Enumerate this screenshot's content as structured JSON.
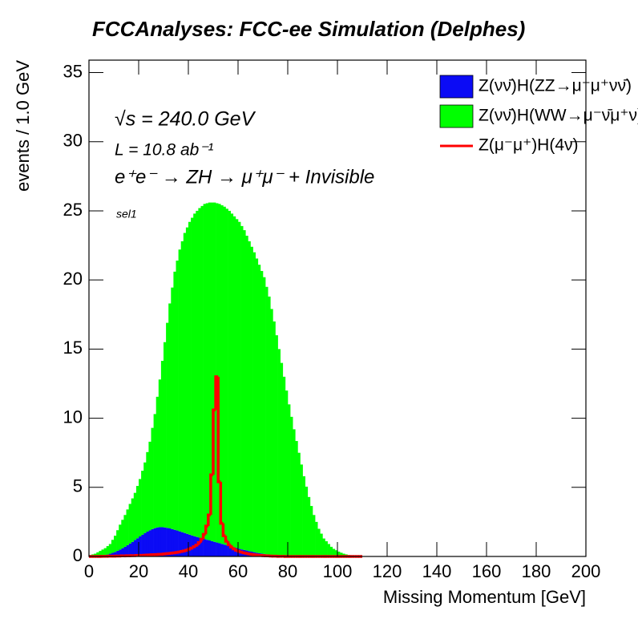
{
  "chart_data": {
    "type": "histogram",
    "title": "FCCAnalyses: FCC-ee Simulation (Delphes)",
    "x_label": "Missing Momentum [GeV]",
    "y_label": "events / 1.0 GeV",
    "annotations": [
      "√s = 240.0 GeV",
      "L = 10.8 ab⁻¹",
      "e⁺e⁻ → ZH → μ⁺μ⁻ + Invisible",
      "sel1"
    ],
    "legend": "top-right",
    "xlim": [
      0,
      200
    ],
    "ylim": [
      0,
      35.9
    ],
    "xticks": [
      0,
      20,
      40,
      60,
      80,
      100,
      120,
      140,
      160,
      180,
      200
    ],
    "yticks": [
      0,
      5,
      10,
      15,
      20,
      25,
      30,
      35
    ],
    "bins": [
      0,
      1,
      2,
      3,
      4,
      5,
      6,
      7,
      8,
      9,
      10,
      11,
      12,
      13,
      14,
      15,
      16,
      17,
      18,
      19,
      20,
      21,
      22,
      23,
      24,
      25,
      26,
      27,
      28,
      29,
      30,
      31,
      32,
      33,
      34,
      35,
      36,
      37,
      38,
      39,
      40,
      41,
      42,
      43,
      44,
      45,
      46,
      47,
      48,
      49,
      50,
      51,
      52,
      53,
      54,
      55,
      56,
      57,
      58,
      59,
      60,
      61,
      62,
      63,
      64,
      65,
      66,
      67,
      68,
      69,
      70,
      71,
      72,
      73,
      74,
      75,
      76,
      77,
      78,
      79,
      80,
      81,
      82,
      83,
      84,
      85,
      86,
      87,
      88,
      89,
      90,
      91,
      92,
      93,
      94,
      95,
      96,
      97,
      98,
      99,
      100,
      101,
      102,
      103,
      104,
      105,
      106,
      107,
      108,
      109,
      110
    ],
    "series": [
      {
        "name": "Z(νν̄)H(ZZ→μ⁻μ⁺νν̄)",
        "color": "#0b0bf5",
        "style": "stacked",
        "values": [
          0,
          0,
          0.01,
          0.02,
          0.04,
          0.07,
          0.1,
          0.14,
          0.2,
          0.26,
          0.33,
          0.41,
          0.5,
          0.6,
          0.7,
          0.82,
          0.94,
          1.06,
          1.2,
          1.32,
          1.45,
          1.57,
          1.7,
          1.8,
          1.9,
          1.98,
          2.05,
          2.1,
          2.12,
          2.12,
          2.1,
          2.07,
          2.03,
          1.98,
          1.93,
          1.88,
          1.82,
          1.76,
          1.7,
          1.64,
          1.58,
          1.52,
          1.46,
          1.41,
          1.36,
          1.31,
          1.26,
          1.21,
          1.16,
          1.11,
          1.06,
          1.01,
          0.96,
          0.91,
          0.86,
          0.81,
          0.76,
          0.71,
          0.66,
          0.61,
          0.56,
          0.51,
          0.47,
          0.43,
          0.39,
          0.35,
          0.31,
          0.27,
          0.24,
          0.21,
          0.18,
          0.15,
          0.12,
          0.1,
          0.08,
          0.06,
          0.04,
          0.03,
          0.02,
          0.01,
          0,
          0,
          0,
          0,
          0,
          0,
          0,
          0,
          0,
          0,
          0,
          0,
          0,
          0,
          0,
          0,
          0,
          0,
          0,
          0,
          0,
          0,
          0,
          0,
          0,
          0,
          0,
          0,
          0,
          0
        ]
      },
      {
        "name": "Z(νν̄)H(WW→μ⁻ν̄μ⁺ν)",
        "color": "#00ff00",
        "style": "stacked",
        "values": [
          0.1,
          0.15,
          0.19,
          0.28,
          0.36,
          0.43,
          0.5,
          0.61,
          0.7,
          0.94,
          1.17,
          1.49,
          1.8,
          2.05,
          2.3,
          2.58,
          2.86,
          3.14,
          3.4,
          3.78,
          4.15,
          4.63,
          5.1,
          5.75,
          6.4,
          7.32,
          8.25,
          9.45,
          10.68,
          12.03,
          13.4,
          14.83,
          16.27,
          17.47,
          18.67,
          19.52,
          20.38,
          21.04,
          21.7,
          22.16,
          22.62,
          22.98,
          23.34,
          23.59,
          23.84,
          24.04,
          24.24,
          24.34,
          24.44,
          24.49,
          24.54,
          24.54,
          24.54,
          24.49,
          24.44,
          24.34,
          24.24,
          24.09,
          23.94,
          23.79,
          23.64,
          23.39,
          23.13,
          22.77,
          22.41,
          22.05,
          21.69,
          21.28,
          20.86,
          20.44,
          20.02,
          19.35,
          18.68,
          17.8,
          16.92,
          15.94,
          14.96,
          13.97,
          12.98,
          11.99,
          11.0,
          10.1,
          9.2,
          8.35,
          7.5,
          6.65,
          5.8,
          5.05,
          4.3,
          3.65,
          3.0,
          2.5,
          2.0,
          1.65,
          1.3,
          1.1,
          0.9,
          0.7,
          0.55,
          0.45,
          0.35,
          0.27,
          0.2,
          0.15,
          0.1,
          0.07,
          0.05,
          0.03,
          0.02,
          0.01
        ]
      },
      {
        "name": "Z(μ⁻μ⁺)H(4ν)",
        "color": "#ff0000",
        "style": "line",
        "values": [
          0,
          0,
          0,
          0,
          0,
          0.01,
          0.01,
          0.01,
          0.02,
          0.02,
          0.02,
          0.03,
          0.03,
          0.04,
          0.04,
          0.05,
          0.05,
          0.06,
          0.06,
          0.07,
          0.08,
          0.08,
          0.09,
          0.1,
          0.11,
          0.12,
          0.13,
          0.14,
          0.15,
          0.16,
          0.18,
          0.2,
          0.22,
          0.24,
          0.26,
          0.29,
          0.32,
          0.36,
          0.4,
          0.45,
          0.52,
          0.6,
          0.7,
          0.82,
          1.0,
          1.25,
          1.6,
          2.2,
          3.0,
          5.9,
          10.6,
          13.0,
          5.4,
          2.4,
          1.5,
          1.1,
          0.85,
          0.68,
          0.55,
          0.45,
          0.38,
          0.32,
          0.27,
          0.23,
          0.19,
          0.16,
          0.13,
          0.11,
          0.09,
          0.07,
          0.06,
          0.05,
          0.04,
          0.03,
          0.02,
          0.02,
          0.01,
          0.01,
          0.01,
          0,
          0,
          0,
          0,
          0,
          0,
          0,
          0,
          0,
          0,
          0,
          0,
          0,
          0,
          0,
          0,
          0,
          0,
          0,
          0,
          0,
          0,
          0,
          0,
          0,
          0,
          0,
          0,
          0,
          0,
          0
        ]
      }
    ]
  }
}
